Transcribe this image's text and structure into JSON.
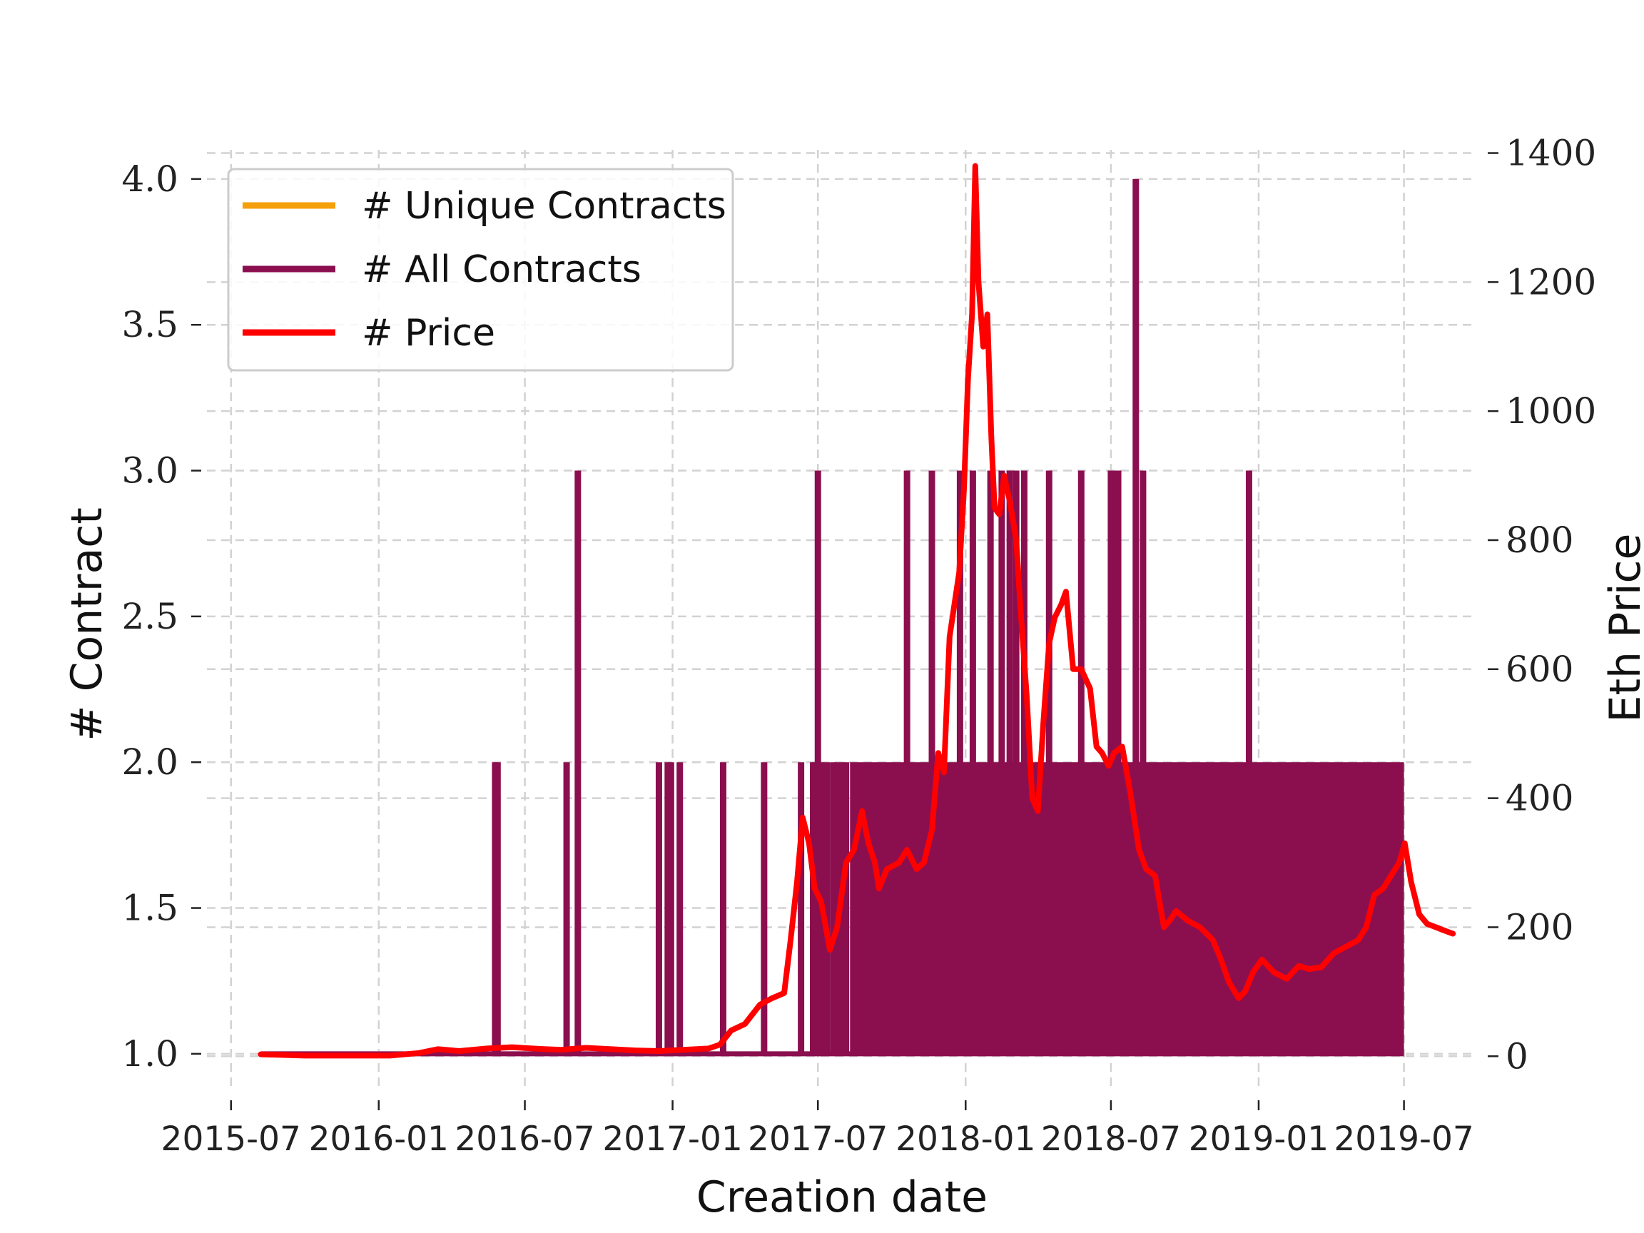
{
  "chart_data": {
    "type": "line",
    "xlabel": "Creation date",
    "ylabel_left": "# Contract",
    "ylabel_right": "Eth Price",
    "x_ticks": [
      "2015-07",
      "2016-01",
      "2016-07",
      "2017-01",
      "2017-07",
      "2018-01",
      "2018-07",
      "2019-01",
      "2019-07"
    ],
    "y_left_ticks": [
      "1.0",
      "1.5",
      "2.0",
      "2.5",
      "3.0",
      "3.5",
      "4.0"
    ],
    "y_right_ticks": [
      "0",
      "200",
      "400",
      "600",
      "800",
      "1000",
      "1200",
      "1400"
    ],
    "y_left_range": [
      0.87,
      4.1
    ],
    "y_right_range": [
      -55,
      1405
    ],
    "x_range": [
      "2015-06-01",
      "2019-09-30"
    ],
    "grid": true,
    "legend_position": "top-left",
    "colors": {
      "unique": "#f5a00a",
      "all": "#8b0f4f",
      "price": "#ff0000"
    },
    "series": [
      {
        "name": "# Unique Contracts",
        "type": "line",
        "values": []
      },
      {
        "name": "# All Contracts",
        "type": "spikes",
        "baseline": 1,
        "dense_band": {
          "start": "2017-08-10",
          "end": "2019-07-01",
          "value": 2
        },
        "spikes": [
          [
            "2016-05-25",
            2
          ],
          [
            "2016-05-28",
            2
          ],
          [
            "2016-08-22",
            2
          ],
          [
            "2016-09-05",
            3
          ],
          [
            "2016-12-15",
            2
          ],
          [
            "2016-12-26",
            2
          ],
          [
            "2016-12-30",
            2
          ],
          [
            "2017-01-10",
            2
          ],
          [
            "2017-03-05",
            2
          ],
          [
            "2017-04-25",
            2
          ],
          [
            "2017-06-10",
            2
          ],
          [
            "2017-06-25",
            2
          ],
          [
            "2017-06-28",
            2
          ],
          [
            "2017-07-01",
            3
          ],
          [
            "2017-07-05",
            2
          ],
          [
            "2017-07-12",
            2
          ],
          [
            "2017-07-20",
            2
          ],
          [
            "2017-07-25",
            2
          ],
          [
            "2017-08-01",
            2
          ],
          [
            "2017-08-05",
            2
          ],
          [
            "2017-10-20",
            3
          ],
          [
            "2017-11-20",
            3
          ],
          [
            "2017-12-25",
            3
          ],
          [
            "2018-01-10",
            3
          ],
          [
            "2018-02-01",
            3
          ],
          [
            "2018-02-15",
            3
          ],
          [
            "2018-02-25",
            3
          ],
          [
            "2018-03-05",
            3
          ],
          [
            "2018-03-15",
            3
          ],
          [
            "2018-04-15",
            3
          ],
          [
            "2018-05-25",
            3
          ],
          [
            "2018-07-01",
            3
          ],
          [
            "2018-07-05",
            3
          ],
          [
            "2018-07-10",
            3
          ],
          [
            "2018-08-01",
            4
          ],
          [
            "2018-08-10",
            3
          ],
          [
            "2018-12-20",
            3
          ]
        ]
      },
      {
        "name": "# Price",
        "type": "line",
        "x": [
          "2015-08-07",
          "2015-10-01",
          "2016-01-15",
          "2016-02-20",
          "2016-03-15",
          "2016-04-10",
          "2016-05-15",
          "2016-06-15",
          "2016-07-10",
          "2016-07-25",
          "2016-08-15",
          "2016-09-15",
          "2016-10-15",
          "2016-11-15",
          "2016-12-15",
          "2017-01-15",
          "2017-02-15",
          "2017-03-01",
          "2017-03-15",
          "2017-04-01",
          "2017-04-20",
          "2017-05-05",
          "2017-05-20",
          "2017-05-28",
          "2017-06-05",
          "2017-06-12",
          "2017-06-20",
          "2017-06-27",
          "2017-07-05",
          "2017-07-16",
          "2017-07-25",
          "2017-08-05",
          "2017-08-15",
          "2017-08-25",
          "2017-09-02",
          "2017-09-10",
          "2017-09-15",
          "2017-09-25",
          "2017-10-10",
          "2017-10-20",
          "2017-11-01",
          "2017-11-10",
          "2017-11-20",
          "2017-11-28",
          "2017-12-05",
          "2017-12-12",
          "2017-12-18",
          "2017-12-24",
          "2017-12-30",
          "2018-01-04",
          "2018-01-09",
          "2018-01-13",
          "2018-01-17",
          "2018-01-23",
          "2018-01-28",
          "2018-02-02",
          "2018-02-06",
          "2018-02-12",
          "2018-02-18",
          "2018-02-25",
          "2018-03-05",
          "2018-03-10",
          "2018-03-18",
          "2018-03-25",
          "2018-04-01",
          "2018-04-08",
          "2018-04-15",
          "2018-04-22",
          "2018-04-30",
          "2018-05-06",
          "2018-05-15",
          "2018-05-25",
          "2018-06-05",
          "2018-06-13",
          "2018-06-20",
          "2018-06-28",
          "2018-07-05",
          "2018-07-15",
          "2018-07-25",
          "2018-08-05",
          "2018-08-14",
          "2018-08-25",
          "2018-09-05",
          "2018-09-12",
          "2018-09-20",
          "2018-10-05",
          "2018-10-20",
          "2018-11-05",
          "2018-11-15",
          "2018-11-25",
          "2018-12-07",
          "2018-12-15",
          "2018-12-25",
          "2019-01-05",
          "2019-01-20",
          "2019-02-05",
          "2019-02-20",
          "2019-03-05",
          "2019-03-20",
          "2019-04-05",
          "2019-04-20",
          "2019-05-05",
          "2019-05-15",
          "2019-05-25",
          "2019-06-05",
          "2019-06-15",
          "2019-06-25",
          "2019-07-02",
          "2019-07-10",
          "2019-07-20",
          "2019-07-30",
          "2019-08-10",
          "2019-08-20",
          "2019-08-31"
        ],
        "values": [
          3,
          1,
          1,
          5,
          11,
          8,
          12,
          14,
          12,
          11,
          10,
          13,
          11,
          9,
          8,
          10,
          12,
          18,
          40,
          50,
          80,
          90,
          98,
          180,
          270,
          370,
          330,
          260,
          240,
          165,
          200,
          300,
          320,
          380,
          330,
          300,
          260,
          290,
          300,
          320,
          290,
          300,
          350,
          470,
          440,
          650,
          700,
          750,
          880,
          1050,
          1150,
          1380,
          1200,
          1100,
          1150,
          960,
          850,
          840,
          900,
          860,
          800,
          700,
          560,
          400,
          380,
          520,
          640,
          680,
          700,
          720,
          600,
          600,
          570,
          480,
          470,
          450,
          470,
          480,
          410,
          320,
          290,
          280,
          200,
          210,
          225,
          210,
          200,
          180,
          150,
          115,
          90,
          100,
          130,
          150,
          130,
          120,
          140,
          135,
          138,
          160,
          170,
          180,
          200,
          250,
          260,
          280,
          300,
          330,
          270,
          220,
          205,
          200,
          195,
          190
        ]
      }
    ]
  }
}
